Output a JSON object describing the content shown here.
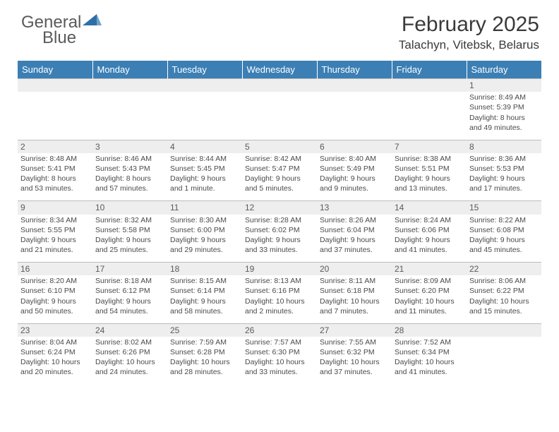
{
  "logo": {
    "text1": "General",
    "text2": "Blue"
  },
  "title": "February 2025",
  "location": "Talachyn, Vitebsk, Belarus",
  "colors": {
    "header_bg": "#3b7fb5",
    "header_text": "#ffffff",
    "daynum_bg": "#eeeeee",
    "text": "#4a4a4a",
    "logo_gray": "#5a5a5a",
    "logo_blue": "#2f6fa8",
    "border": "#bcbcbc"
  },
  "weekdays": [
    "Sunday",
    "Monday",
    "Tuesday",
    "Wednesday",
    "Thursday",
    "Friday",
    "Saturday"
  ],
  "firstWeekday": 6,
  "daysInMonth": 28,
  "days": {
    "1": {
      "sunrise": "8:49 AM",
      "sunset": "5:39 PM",
      "daylight": "8 hours and 49 minutes."
    },
    "2": {
      "sunrise": "8:48 AM",
      "sunset": "5:41 PM",
      "daylight": "8 hours and 53 minutes."
    },
    "3": {
      "sunrise": "8:46 AM",
      "sunset": "5:43 PM",
      "daylight": "8 hours and 57 minutes."
    },
    "4": {
      "sunrise": "8:44 AM",
      "sunset": "5:45 PM",
      "daylight": "9 hours and 1 minute."
    },
    "5": {
      "sunrise": "8:42 AM",
      "sunset": "5:47 PM",
      "daylight": "9 hours and 5 minutes."
    },
    "6": {
      "sunrise": "8:40 AM",
      "sunset": "5:49 PM",
      "daylight": "9 hours and 9 minutes."
    },
    "7": {
      "sunrise": "8:38 AM",
      "sunset": "5:51 PM",
      "daylight": "9 hours and 13 minutes."
    },
    "8": {
      "sunrise": "8:36 AM",
      "sunset": "5:53 PM",
      "daylight": "9 hours and 17 minutes."
    },
    "9": {
      "sunrise": "8:34 AM",
      "sunset": "5:55 PM",
      "daylight": "9 hours and 21 minutes."
    },
    "10": {
      "sunrise": "8:32 AM",
      "sunset": "5:58 PM",
      "daylight": "9 hours and 25 minutes."
    },
    "11": {
      "sunrise": "8:30 AM",
      "sunset": "6:00 PM",
      "daylight": "9 hours and 29 minutes."
    },
    "12": {
      "sunrise": "8:28 AM",
      "sunset": "6:02 PM",
      "daylight": "9 hours and 33 minutes."
    },
    "13": {
      "sunrise": "8:26 AM",
      "sunset": "6:04 PM",
      "daylight": "9 hours and 37 minutes."
    },
    "14": {
      "sunrise": "8:24 AM",
      "sunset": "6:06 PM",
      "daylight": "9 hours and 41 minutes."
    },
    "15": {
      "sunrise": "8:22 AM",
      "sunset": "6:08 PM",
      "daylight": "9 hours and 45 minutes."
    },
    "16": {
      "sunrise": "8:20 AM",
      "sunset": "6:10 PM",
      "daylight": "9 hours and 50 minutes."
    },
    "17": {
      "sunrise": "8:18 AM",
      "sunset": "6:12 PM",
      "daylight": "9 hours and 54 minutes."
    },
    "18": {
      "sunrise": "8:15 AM",
      "sunset": "6:14 PM",
      "daylight": "9 hours and 58 minutes."
    },
    "19": {
      "sunrise": "8:13 AM",
      "sunset": "6:16 PM",
      "daylight": "10 hours and 2 minutes."
    },
    "20": {
      "sunrise": "8:11 AM",
      "sunset": "6:18 PM",
      "daylight": "10 hours and 7 minutes."
    },
    "21": {
      "sunrise": "8:09 AM",
      "sunset": "6:20 PM",
      "daylight": "10 hours and 11 minutes."
    },
    "22": {
      "sunrise": "8:06 AM",
      "sunset": "6:22 PM",
      "daylight": "10 hours and 15 minutes."
    },
    "23": {
      "sunrise": "8:04 AM",
      "sunset": "6:24 PM",
      "daylight": "10 hours and 20 minutes."
    },
    "24": {
      "sunrise": "8:02 AM",
      "sunset": "6:26 PM",
      "daylight": "10 hours and 24 minutes."
    },
    "25": {
      "sunrise": "7:59 AM",
      "sunset": "6:28 PM",
      "daylight": "10 hours and 28 minutes."
    },
    "26": {
      "sunrise": "7:57 AM",
      "sunset": "6:30 PM",
      "daylight": "10 hours and 33 minutes."
    },
    "27": {
      "sunrise": "7:55 AM",
      "sunset": "6:32 PM",
      "daylight": "10 hours and 37 minutes."
    },
    "28": {
      "sunrise": "7:52 AM",
      "sunset": "6:34 PM",
      "daylight": "10 hours and 41 minutes."
    }
  },
  "labels": {
    "sunrise": "Sunrise:",
    "sunset": "Sunset:",
    "daylight": "Daylight:"
  }
}
